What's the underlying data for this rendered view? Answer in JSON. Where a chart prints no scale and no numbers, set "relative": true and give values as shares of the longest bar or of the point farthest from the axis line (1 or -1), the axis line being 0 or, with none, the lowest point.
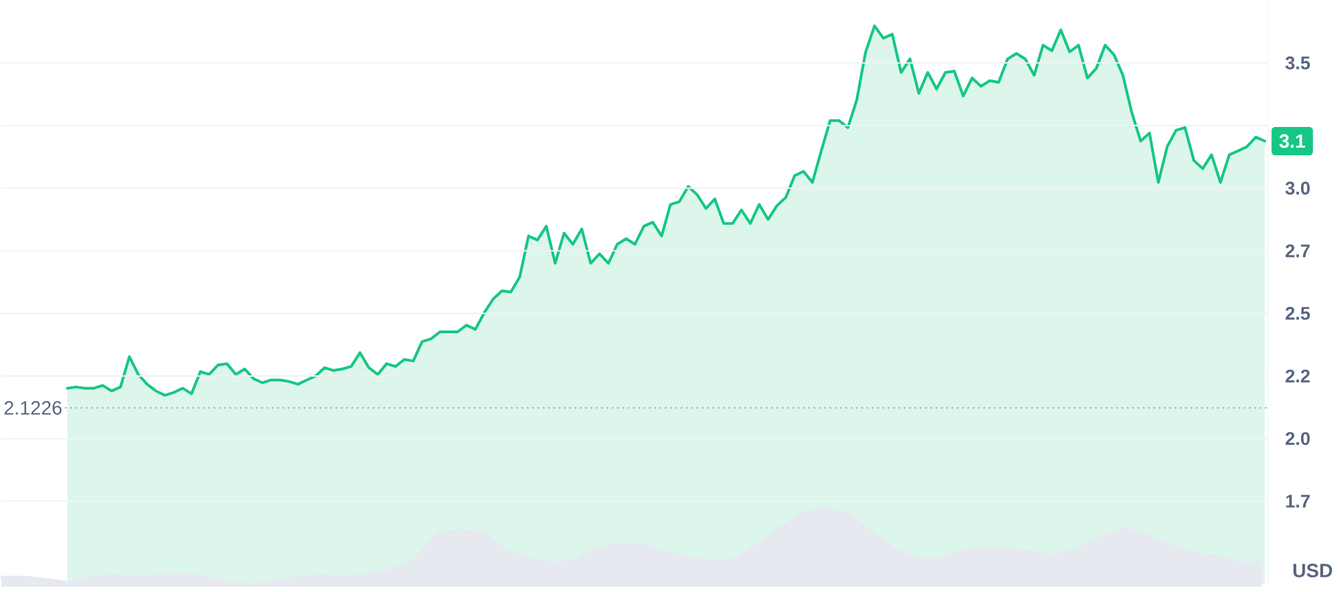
{
  "chart_data": [
    {
      "type": "area",
      "color": "#16c784",
      "ylabel": "USD",
      "grid": "y",
      "ylim": [
        1.42,
        3.75
      ],
      "yticks": [
        {
          "value": 1.75,
          "label": "1.7"
        },
        {
          "value": 2,
          "label": "2.0"
        },
        {
          "value": 2.25,
          "label": "2.2"
        },
        2.5,
        {
          "value": 2.75,
          "label": "2.7"
        },
        {
          "value": 3,
          "label": "3.0"
        },
        {
          "value": 3.25,
          "label": null
        },
        3.5
      ],
      "ref_lines": [
        {
          "axis": "y",
          "value": 2.1226,
          "label": "2.1226",
          "line_style": "dotted",
          "color": "#a6b0c3"
        }
      ],
      "annotations": [
        "3.1"
      ],
      "categories": [
        null,
        null,
        null,
        null,
        null,
        null,
        null,
        null,
        null,
        null,
        null,
        null,
        null,
        null,
        null,
        null,
        null,
        null,
        null,
        null,
        null,
        null,
        null,
        null,
        null,
        null,
        null,
        null,
        null,
        null,
        null,
        null,
        null,
        null,
        null,
        null,
        null,
        null,
        null,
        null,
        null,
        null,
        null,
        null,
        null,
        null,
        null,
        null,
        null,
        null,
        null,
        null,
        null,
        null,
        null,
        null,
        null,
        null,
        null,
        null,
        null,
        null,
        null,
        null,
        null,
        null,
        null,
        null,
        null,
        null,
        null,
        null,
        null,
        null,
        null,
        null,
        null,
        null,
        null,
        null,
        null,
        null,
        null,
        null,
        null,
        null,
        null,
        null,
        null,
        null,
        null,
        null,
        null,
        null,
        null,
        null,
        null,
        null,
        null,
        null,
        null,
        null,
        null,
        null,
        null,
        null,
        null,
        null,
        null,
        null,
        null,
        null,
        null,
        null,
        null,
        null,
        null,
        null,
        null,
        null,
        null,
        null,
        null,
        null,
        null,
        null,
        null,
        null,
        null,
        null,
        null,
        null,
        null,
        null,
        null,
        null
      ],
      "values": [
        2.201,
        2.206,
        2.201,
        2.201,
        2.212,
        2.19,
        2.206,
        2.327,
        2.256,
        2.217,
        2.19,
        2.173,
        2.184,
        2.201,
        2.179,
        2.267,
        2.256,
        2.294,
        2.299,
        2.256,
        2.278,
        2.239,
        2.223,
        2.234,
        2.234,
        2.228,
        2.217,
        2.234,
        2.25,
        2.283,
        2.272,
        2.278,
        2.288,
        2.343,
        2.283,
        2.256,
        2.299,
        2.288,
        2.316,
        2.31,
        2.387,
        2.398,
        2.426,
        2.426,
        2.426,
        2.453,
        2.436,
        2.502,
        2.557,
        2.59,
        2.585,
        2.645,
        2.809,
        2.793,
        2.848,
        2.7,
        2.82,
        2.776,
        2.837,
        2.7,
        2.738,
        2.7,
        2.776,
        2.798,
        2.776,
        2.848,
        2.864,
        2.809,
        2.935,
        2.946,
        3.007,
        2.974,
        2.919,
        2.957,
        2.859,
        2.859,
        2.913,
        2.859,
        2.935,
        2.875,
        2.93,
        2.963,
        3.05,
        3.067,
        3.023,
        3.149,
        3.27,
        3.27,
        3.242,
        3.352,
        3.544,
        3.648,
        3.599,
        3.615,
        3.462,
        3.516,
        3.379,
        3.462,
        3.396,
        3.462,
        3.467,
        3.368,
        3.44,
        3.407,
        3.429,
        3.423,
        3.516,
        3.538,
        3.516,
        3.451,
        3.571,
        3.549,
        3.632,
        3.544,
        3.571,
        3.44,
        3.478,
        3.571,
        3.533,
        3.451,
        3.303,
        3.188,
        3.22,
        3.023,
        3.166,
        3.231,
        3.242,
        3.111,
        3.078,
        3.133,
        3.023,
        3.133,
        3.149,
        3.166,
        3.204,
        3.188
      ]
    },
    {
      "type": "area",
      "relative": true,
      "color": "#e6e9ef",
      "categories": [
        null,
        null,
        null,
        null,
        null,
        null,
        null,
        null,
        null,
        null,
        null,
        null,
        null,
        null,
        null,
        null,
        null,
        null,
        null,
        null,
        null,
        null,
        null,
        null,
        null,
        null,
        null,
        null,
        null,
        null,
        null,
        null,
        null,
        null,
        null,
        null,
        null,
        null,
        null,
        null,
        null,
        null,
        null,
        null,
        null,
        null,
        null,
        null,
        null,
        null,
        null,
        null,
        null,
        null,
        null,
        null
      ],
      "values": [
        0.12,
        0.12,
        0.09,
        0.05,
        0.12,
        0.14,
        0.11,
        0.14,
        0.16,
        0.11,
        0.05,
        0.02,
        0.07,
        0.12,
        0.14,
        0.11,
        0.16,
        0.21,
        0.33,
        0.67,
        0.72,
        0.7,
        0.47,
        0.35,
        0.3,
        0.32,
        0.49,
        0.54,
        0.53,
        0.44,
        0.37,
        0.32,
        0.35,
        0.54,
        0.75,
        0.95,
        1,
        0.93,
        0.68,
        0.47,
        0.35,
        0.35,
        0.46,
        0.49,
        0.47,
        0.44,
        0.39,
        0.49,
        0.63,
        0.74,
        0.65,
        0.53,
        0.42,
        0.39,
        0.3,
        0.3
      ]
    }
  ]
}
